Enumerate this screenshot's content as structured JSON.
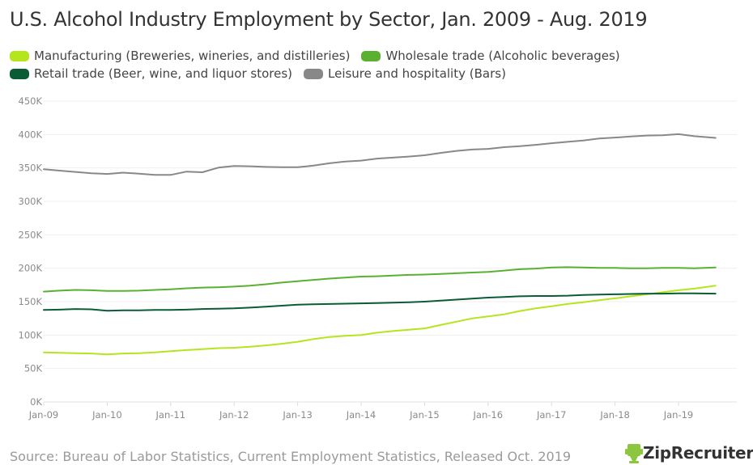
{
  "chart_data": {
    "type": "line",
    "title": "U.S. Alcohol Industry Employment by Sector, Jan. 2009 - Aug. 2019",
    "xlabel": "",
    "ylabel": "",
    "ylim": [
      0,
      450000
    ],
    "yticks": [
      0,
      50000,
      100000,
      150000,
      200000,
      250000,
      300000,
      350000,
      400000,
      450000
    ],
    "ytick_labels": [
      "0K",
      "50K",
      "100K",
      "150K",
      "200K",
      "250K",
      "300K",
      "350K",
      "400K",
      "450K"
    ],
    "xtick_labels": [
      "Jan-09",
      "Jan-10",
      "Jan-11",
      "Jan-12",
      "Jan-13",
      "Jan-14",
      "Jan-15",
      "Jan-16",
      "Jan-17",
      "Jan-18",
      "Jan-19"
    ],
    "x_start": "2009-01",
    "x_end": "2019-08",
    "grid": true,
    "legend_position": "top-left",
    "x": [
      "2009-01",
      "2009-04",
      "2009-07",
      "2009-10",
      "2010-01",
      "2010-04",
      "2010-07",
      "2010-10",
      "2011-01",
      "2011-04",
      "2011-07",
      "2011-10",
      "2012-01",
      "2012-04",
      "2012-07",
      "2012-10",
      "2013-01",
      "2013-04",
      "2013-07",
      "2013-10",
      "2014-01",
      "2014-04",
      "2014-07",
      "2014-10",
      "2015-01",
      "2015-04",
      "2015-07",
      "2015-10",
      "2016-01",
      "2016-04",
      "2016-07",
      "2016-10",
      "2017-01",
      "2017-04",
      "2017-07",
      "2017-10",
      "2018-01",
      "2018-04",
      "2018-07",
      "2018-10",
      "2019-01",
      "2019-04",
      "2019-08"
    ],
    "series": [
      {
        "name": "Manufacturing (Breweries, wineries, and distilleries)",
        "color": "#b5e61d",
        "values": [
          74000,
          73500,
          73000,
          72500,
          71000,
          72500,
          73000,
          74000,
          76000,
          77500,
          79000,
          80500,
          81000,
          82500,
          84500,
          87000,
          90000,
          94000,
          97000,
          99000,
          100000,
          103500,
          106000,
          108000,
          110000,
          115000,
          120000,
          125000,
          128000,
          131000,
          136000,
          140000,
          143000,
          146500,
          149000,
          152000,
          155000,
          158000,
          161000,
          164000,
          167000,
          169500,
          174000
        ]
      },
      {
        "name": "Wholesale trade (Alcoholic beverages)",
        "color": "#5ab031",
        "values": [
          165000,
          166500,
          167500,
          167000,
          166000,
          166000,
          166500,
          167500,
          168500,
          170000,
          171000,
          171500,
          172500,
          174000,
          176000,
          178500,
          180500,
          182500,
          184500,
          186000,
          187500,
          188000,
          189000,
          190000,
          190500,
          191500,
          192500,
          193500,
          194500,
          196500,
          198500,
          199500,
          201000,
          201500,
          201000,
          200500,
          200500,
          200000,
          200000,
          200500,
          200500,
          200000,
          201000
        ]
      },
      {
        "name": "Retail trade (Beer, wine, and liquor stores)",
        "color": "#0a5c36",
        "values": [
          137500,
          138000,
          139000,
          138500,
          136500,
          137000,
          137000,
          137500,
          137500,
          138000,
          139000,
          139500,
          140000,
          141000,
          142500,
          144000,
          145500,
          146000,
          146500,
          147000,
          147500,
          148000,
          148500,
          149000,
          150000,
          151500,
          153000,
          154500,
          156000,
          157000,
          158000,
          158500,
          158500,
          159000,
          160000,
          160500,
          161000,
          161500,
          162000,
          162000,
          162500,
          162500,
          162000
        ]
      },
      {
        "name": "Leisure and hospitality (Bars)",
        "color": "#888888",
        "values": [
          348000,
          346000,
          344000,
          342000,
          341000,
          343000,
          341500,
          339500,
          339500,
          344500,
          343500,
          350500,
          353000,
          352500,
          351500,
          351000,
          351000,
          353500,
          357000,
          359500,
          361000,
          364000,
          365500,
          367000,
          369000,
          372500,
          375500,
          377500,
          378500,
          381000,
          382500,
          384500,
          387000,
          389000,
          391000,
          394000,
          395500,
          397000,
          398500,
          399000,
          400500,
          397500,
          395000
        ]
      }
    ]
  },
  "legend": {
    "items": [
      {
        "label": "Manufacturing (Breweries, wineries, and distilleries)",
        "color": "#b5e61d"
      },
      {
        "label": "Wholesale trade (Alcoholic beverages)",
        "color": "#5ab031"
      },
      {
        "label": "Retail trade (Beer, wine, and liquor stores)",
        "color": "#0a5c36"
      },
      {
        "label": "Leisure and hospitality (Bars)",
        "color": "#888888"
      }
    ]
  },
  "footer": {
    "source": "Source: Bureau of Labor Statistics, Current Employment Statistics, Released Oct. 2019",
    "brand": "ZipRecruiter",
    "brand_mark": "®",
    "brand_color": "#8cc63f"
  }
}
